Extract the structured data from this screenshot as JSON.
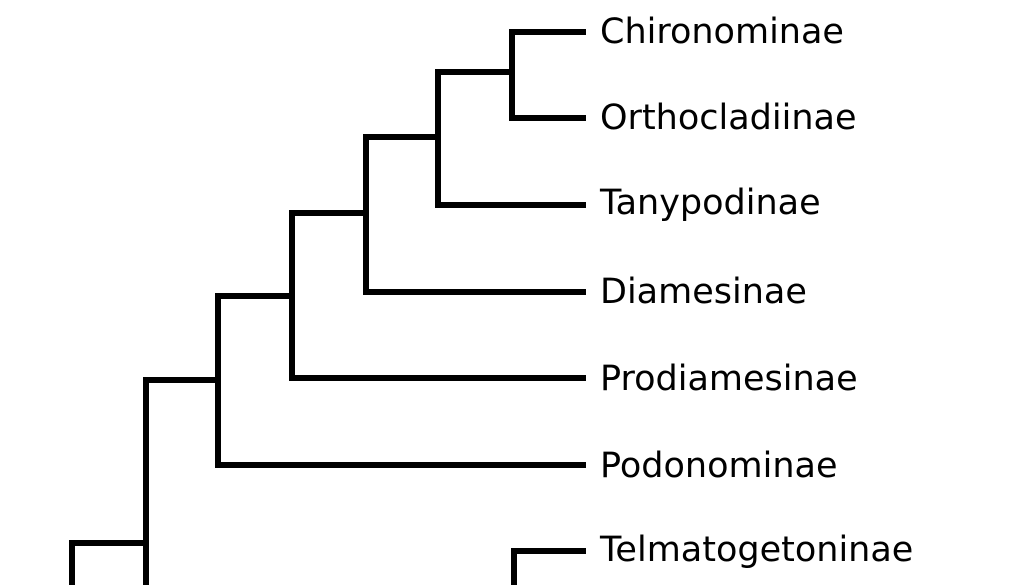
{
  "tree": {
    "line_color": "#000000",
    "leaves": [
      {
        "label": "Chironominae"
      },
      {
        "label": "Orthocladiinae"
      },
      {
        "label": "Tanypodinae"
      },
      {
        "label": "Diamesinae"
      },
      {
        "label": "Prodiamesinae"
      },
      {
        "label": "Podonominae"
      },
      {
        "label": "Telmatogetoninae"
      }
    ],
    "newick": "((((((((Chironominae,Orthocladiinae),Tanypodinae),Diamesinae),Prodiamesinae),Podonominae),...),(Telmatogetoninae,...)))"
  }
}
